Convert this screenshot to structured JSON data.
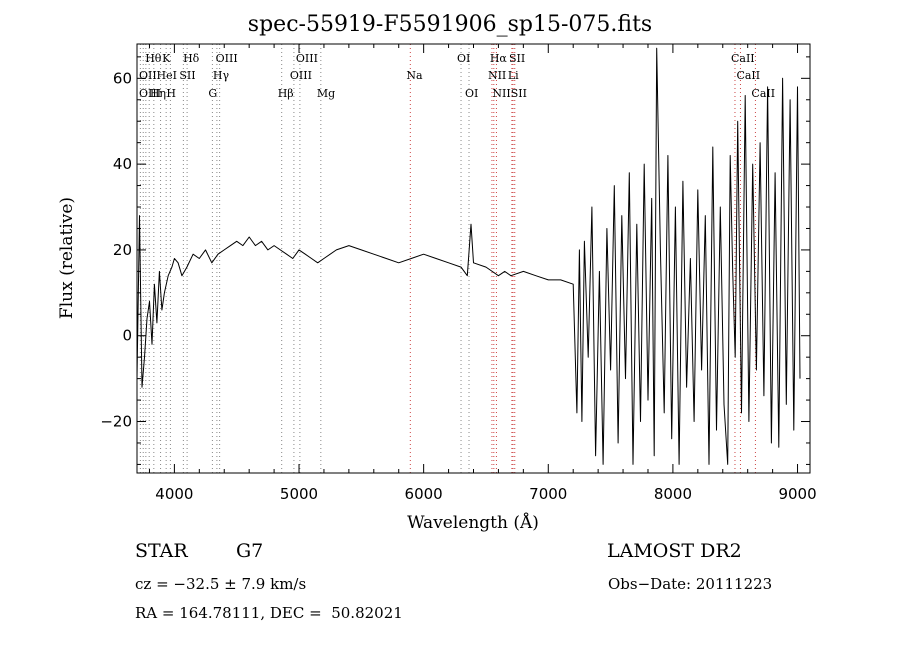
{
  "chart_data": {
    "type": "line",
    "title": "spec-55919-F5591906_sp15-075.fits",
    "xlabel": "Wavelength (Å)",
    "ylabel": "Flux (relative)",
    "xlim": [
      3700,
      9100
    ],
    "ylim": [
      -32,
      68
    ],
    "x_ticks": [
      4000,
      5000,
      6000,
      7000,
      8000,
      9000
    ],
    "y_ticks": [
      -20,
      0,
      20,
      40,
      60
    ],
    "grid": false,
    "series": [
      {
        "color": "#000000",
        "x": [
          3700,
          3720,
          3740,
          3760,
          3780,
          3800,
          3820,
          3840,
          3860,
          3880,
          3900,
          3920,
          3950,
          3980,
          4000,
          4030,
          4060,
          4100,
          4150,
          4200,
          4250,
          4300,
          4350,
          4400,
          4450,
          4500,
          4550,
          4600,
          4650,
          4700,
          4750,
          4800,
          4850,
          4900,
          4950,
          5000,
          5050,
          5100,
          5150,
          5200,
          5300,
          5400,
          5500,
          5600,
          5700,
          5800,
          5900,
          6000,
          6100,
          6200,
          6300,
          6350,
          6380,
          6400,
          6500,
          6550,
          6600,
          6650,
          6700,
          6800,
          6900,
          7000,
          7100,
          7200,
          7230,
          7250,
          7270,
          7290,
          7320,
          7350,
          7380,
          7410,
          7440,
          7470,
          7500,
          7530,
          7560,
          7590,
          7620,
          7650,
          7680,
          7710,
          7740,
          7770,
          7800,
          7830,
          7850,
          7870,
          7900,
          7930,
          7960,
          7990,
          8020,
          8050,
          8080,
          8110,
          8140,
          8170,
          8200,
          8230,
          8260,
          8290,
          8320,
          8350,
          8380,
          8410,
          8440,
          8460,
          8480,
          8500,
          8520,
          8550,
          8580,
          8610,
          8640,
          8670,
          8700,
          8730,
          8760,
          8790,
          8820,
          8850,
          8880,
          8910,
          8940,
          8970,
          9000,
          9020
        ],
        "y": [
          -10,
          28,
          -12,
          -5,
          4,
          8,
          -2,
          12,
          3,
          15,
          6,
          10,
          14,
          16,
          18,
          17,
          14,
          16,
          19,
          18,
          20,
          17,
          19,
          20,
          21,
          22,
          21,
          23,
          21,
          22,
          20,
          21,
          20,
          19,
          18,
          20,
          19,
          18,
          17,
          18,
          20,
          21,
          20,
          19,
          18,
          17,
          18,
          19,
          18,
          17,
          16,
          14,
          26,
          17,
          16,
          15,
          14,
          15,
          14,
          15,
          14,
          13,
          13,
          12,
          -18,
          20,
          -20,
          22,
          -5,
          30,
          -28,
          15,
          -30,
          25,
          -8,
          35,
          -25,
          28,
          -10,
          38,
          -30,
          26,
          -20,
          40,
          -15,
          32,
          -28,
          67,
          20,
          -18,
          42,
          -24,
          30,
          -30,
          36,
          -12,
          18,
          -20,
          34,
          -8,
          28,
          -30,
          44,
          -22,
          30,
          -16,
          -30,
          42,
          15,
          -5,
          50,
          -18,
          56,
          -20,
          40,
          -8,
          45,
          -14,
          58,
          -25,
          38,
          -26,
          60,
          -16,
          55,
          -22,
          58,
          -10
        ]
      }
    ],
    "line_labels": [
      {
        "text": "Hθ",
        "wl": 3798,
        "row": 0
      },
      {
        "text": "K",
        "wl": 3934,
        "row": 0
      },
      {
        "text": "Hδ",
        "wl": 4102,
        "row": 0
      },
      {
        "text": "OIII",
        "wl": 4363,
        "row": 0
      },
      {
        "text": "OIII",
        "wl": 5007,
        "row": 0
      },
      {
        "text": "OI",
        "wl": 6300,
        "row": 0
      },
      {
        "text": "Hα",
        "wl": 6563,
        "row": 0
      },
      {
        "text": "SII",
        "wl": 6717,
        "row": 0
      },
      {
        "text": "CaII",
        "wl": 8498,
        "row": 0
      },
      {
        "text": "OII",
        "wl": 3727,
        "row": 1
      },
      {
        "text": "HeI",
        "wl": 3889,
        "row": 1
      },
      {
        "text": "SII",
        "wl": 4072,
        "row": 1
      },
      {
        "text": "Hγ",
        "wl": 4341,
        "row": 1
      },
      {
        "text": "OIII",
        "wl": 4959,
        "row": 1
      },
      {
        "text": "Na",
        "wl": 5893,
        "row": 1
      },
      {
        "text": "NII",
        "wl": 6548,
        "row": 1
      },
      {
        "text": "Li",
        "wl": 6708,
        "row": 1
      },
      {
        "text": "CaII",
        "wl": 8542,
        "row": 1
      },
      {
        "text": "OIII",
        "wl": 3700,
        "row": 2
      },
      {
        "text": "Hη",
        "wl": 3835,
        "row": 2
      },
      {
        "text": "H",
        "wl": 3968,
        "row": 2
      },
      {
        "text": "G",
        "wl": 4305,
        "row": 2
      },
      {
        "text": "Hβ",
        "wl": 4861,
        "row": 2
      },
      {
        "text": "Mg",
        "wl": 5175,
        "row": 2
      },
      {
        "text": "OI",
        "wl": 6364,
        "row": 2
      },
      {
        "text": "NII",
        "wl": 6584,
        "row": 2
      },
      {
        "text": "SII",
        "wl": 6731,
        "row": 2
      },
      {
        "text": "CaII",
        "wl": 8662,
        "row": 2
      }
    ],
    "line_markers": [
      {
        "wl": 3727,
        "color": "#888888"
      },
      {
        "wl": 3750,
        "color": "#888888"
      },
      {
        "wl": 3771,
        "color": "#888888"
      },
      {
        "wl": 3798,
        "color": "#888888"
      },
      {
        "wl": 3835,
        "color": "#888888"
      },
      {
        "wl": 3889,
        "color": "#888888"
      },
      {
        "wl": 3934,
        "color": "#888888"
      },
      {
        "wl": 3968,
        "color": "#888888"
      },
      {
        "wl": 4072,
        "color": "#888888"
      },
      {
        "wl": 4102,
        "color": "#888888"
      },
      {
        "wl": 4305,
        "color": "#888888"
      },
      {
        "wl": 4341,
        "color": "#888888"
      },
      {
        "wl": 4363,
        "color": "#888888"
      },
      {
        "wl": 4861,
        "color": "#888888"
      },
      {
        "wl": 4959,
        "color": "#888888"
      },
      {
        "wl": 5007,
        "color": "#888888"
      },
      {
        "wl": 5175,
        "color": "#888888"
      },
      {
        "wl": 5893,
        "color": "#cc4444"
      },
      {
        "wl": 6300,
        "color": "#888888"
      },
      {
        "wl": 6364,
        "color": "#888888"
      },
      {
        "wl": 6548,
        "color": "#cc4444"
      },
      {
        "wl": 6563,
        "color": "#cc4444"
      },
      {
        "wl": 6584,
        "color": "#cc4444"
      },
      {
        "wl": 6708,
        "color": "#cc4444"
      },
      {
        "wl": 6717,
        "color": "#cc4444"
      },
      {
        "wl": 6731,
        "color": "#cc4444"
      },
      {
        "wl": 8498,
        "color": "#cc4444"
      },
      {
        "wl": 8542,
        "color": "#cc4444"
      },
      {
        "wl": 8662,
        "color": "#cc4444"
      }
    ]
  },
  "info": {
    "object_class": "STAR",
    "subclass": "G7",
    "survey": "LAMOST DR2",
    "redshift": "cz = −32.5 ± 7.9 km/s",
    "obs_date": "Obs−Date: 20111223",
    "coords": "RA = 164.78111, DEC =  50.82021"
  }
}
